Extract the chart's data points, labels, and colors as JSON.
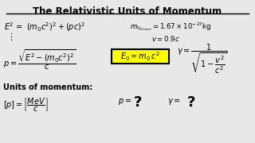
{
  "title": "The Relativistic Units of Momentum",
  "bg_color": "#e8e8e8",
  "text_color": "#000000",
  "yellow_box_color": "#ffff00",
  "yellow_box_edge": "#000000",
  "title_fontsize": 8.5,
  "main_fontsize": 7.0,
  "small_fontsize": 6.2
}
